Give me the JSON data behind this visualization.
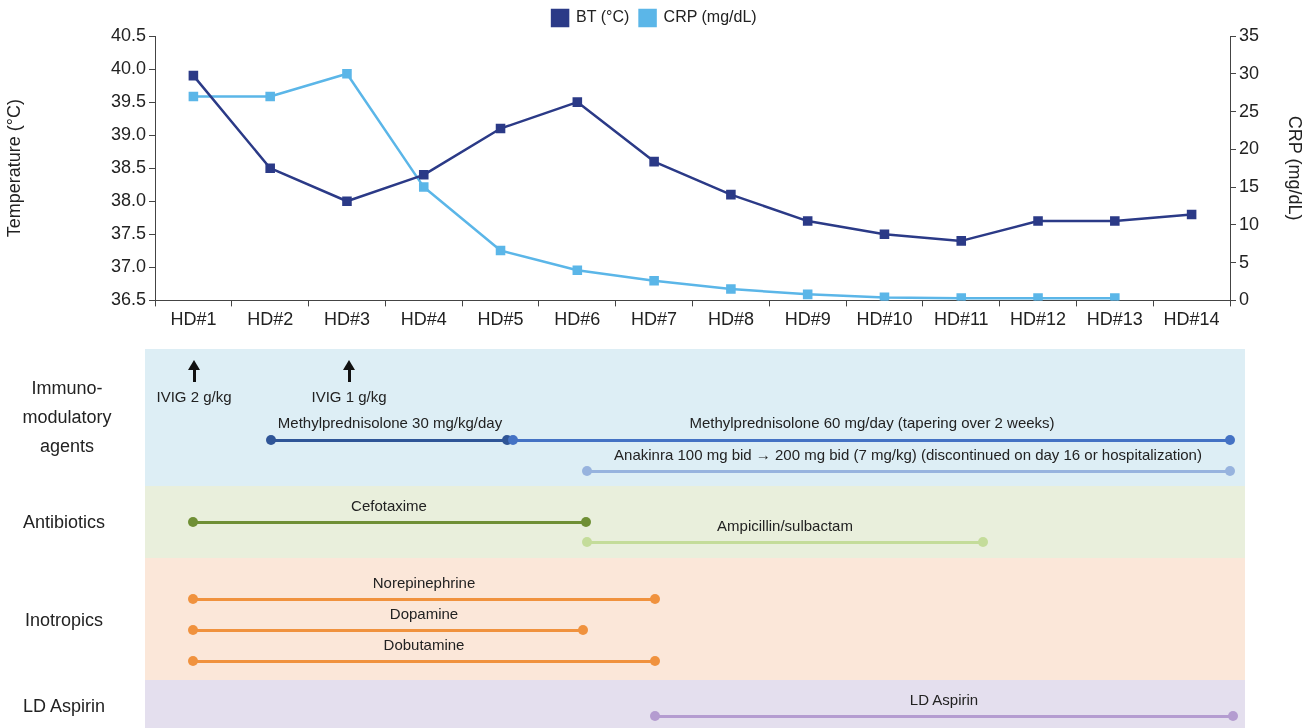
{
  "chart_data": [
    {
      "type": "line",
      "ylabel": "Temperature (°C)",
      "y2label": "CRP (mg/dL)",
      "categories": [
        "HD#1",
        "HD#2",
        "HD#3",
        "HD#4",
        "HD#5",
        "HD#6",
        "HD#7",
        "HD#8",
        "HD#9",
        "HD#10",
        "HD#11",
        "HD#12",
        "HD#13",
        "HD#14"
      ],
      "series": [
        {
          "name": "BT (°C)",
          "color": "#2b3a87",
          "values": [
            39.9,
            38.5,
            38.0,
            38.4,
            39.1,
            39.5,
            38.6,
            38.1,
            37.7,
            37.5,
            37.4,
            37.7,
            37.7,
            37.8
          ]
        },
        {
          "name": "CRP (mg/dL)",
          "color": "#5bb6e8",
          "axis": "y2",
          "values": [
            27,
            27,
            30,
            15,
            6.6,
            4,
            2.6,
            1.5,
            0.8,
            0.4,
            0.3,
            0.3,
            0.3,
            null
          ]
        }
      ],
      "ylim": [
        36.5,
        40.5
      ],
      "yticks": [
        36.5,
        {
          "value": 37,
          "label": "37.0"
        },
        37.5,
        {
          "value": 38,
          "label": "38.0"
        },
        38.5,
        {
          "value": 39,
          "label": "39.0"
        },
        39.5,
        {
          "value": 40,
          "label": "40.0"
        },
        40.5
      ],
      "y2lim": [
        0,
        35
      ],
      "y2ticks": [
        0,
        5,
        10,
        15,
        20,
        25,
        30,
        35
      ],
      "marker": "square",
      "line_style": "solid",
      "legend": "top",
      "grid": false
    },
    {
      "type": "other",
      "annotations": [
        "IVIG 2 g/kg",
        "IVIG 1 g/kg",
        "Immuno-modulatory agents",
        "Methylprednisolone 30 mg/kg/day",
        "Methylprednisolone 60 mg/day (tapering over 2 weeks)",
        "Anakinra 100 mg bid → 200 mg bid (7 mg/kg) (discontinued on day 16 or hospitalization)",
        "Antibiotics",
        "Cefotaxime",
        "Ampicillin/sulbactam",
        "Inotropics",
        "Norepinephrine",
        "Dopamine",
        "Dobutamine",
        "LD Aspirin",
        "LD Aspirin"
      ]
    }
  ]
}
